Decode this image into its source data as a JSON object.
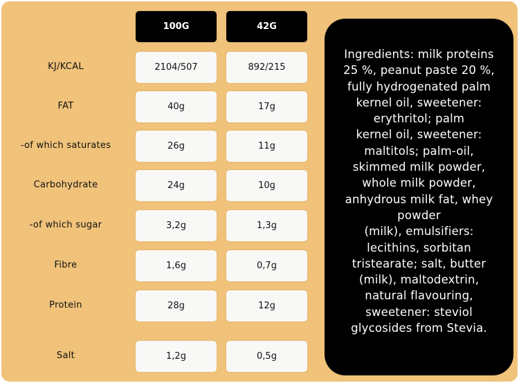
{
  "columns": [
    "100G",
    "42G"
  ],
  "rows": [
    {
      "label": "KJ/KCAL",
      "v100": "2104/507",
      "v42": "892/215"
    },
    {
      "label": "FAT",
      "v100": "40g",
      "v42": "17g"
    },
    {
      "label": "-of which saturates",
      "v100": "26g",
      "v42": "11g"
    },
    {
      "label": "Carbohydrate",
      "v100": "24g",
      "v42": "10g"
    },
    {
      "label": "-of which sugar",
      "v100": "3,2g",
      "v42": "1,3g"
    },
    {
      "label": "Fibre",
      "v100": "1,6g",
      "v42": "0,7g"
    },
    {
      "label": "Protein",
      "v100": "28g",
      "v42": "12g"
    },
    {
      "label": "Salt",
      "v100": "1,2g",
      "v42": "0,5g"
    }
  ],
  "ingredients_lines": [
    "Ingredients: milk proteins",
    "25 %, peanut paste 20 %,",
    "fully hydrogenated palm",
    "kernel oil, sweetener:",
    "erythritol; palm",
    "kernel oil, sweetener:",
    "maltitols; palm-oil,",
    "skimmed milk powder,",
    "whole milk powder,",
    "anhydrous milk fat, whey",
    "powder",
    "(milk), emulsifiers:",
    "lecithins, sorbitan",
    "tristearate; salt, butter",
    "(milk), maltodextrin,",
    "natural flavouring,",
    "sweetener: steviol",
    "glycosides from Stevia."
  ],
  "colors": {
    "background": "#f0c27a",
    "header": "#000000",
    "cell": "#f8f8f6",
    "ingredients_box": "#000000"
  }
}
